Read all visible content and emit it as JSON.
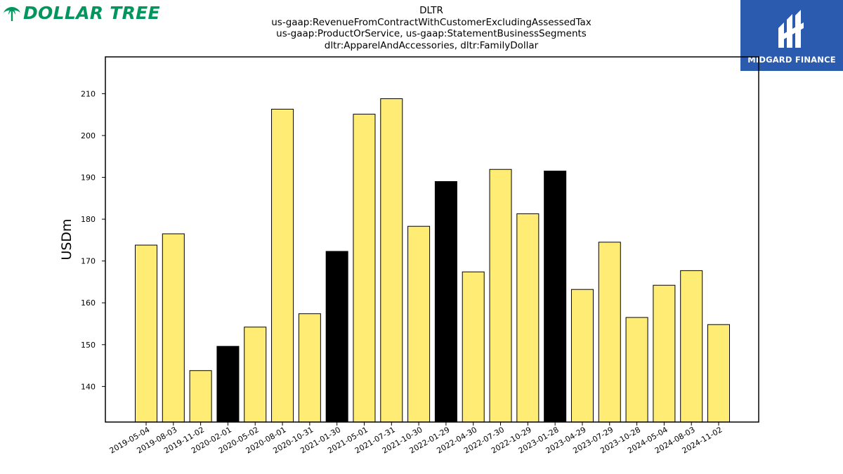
{
  "brand": {
    "name": "DOLLAR TREE",
    "color": "#00965E"
  },
  "partner": {
    "name": "MIDGARD FINANCE",
    "background": "#2B5BAE"
  },
  "chart_data": {
    "type": "bar",
    "title_lines": [
      "DLTR",
      "us-gaap:RevenueFromContractWithCustomerExcludingAssessedTax",
      "us-gaap:ProductOrService, us-gaap:StatementBusinessSegments",
      "dltr:ApparelAndAccessories, dltr:FamilyDollar"
    ],
    "xlabel": "",
    "ylabel": "USDm",
    "ylim": [
      131.5,
      218.8
    ],
    "yticks": [
      140,
      150,
      160,
      170,
      180,
      190,
      200,
      210
    ],
    "grid": false,
    "categories": [
      "2019-05-04",
      "2019-08-03",
      "2019-11-02",
      "2020-02-01",
      "2020-05-02",
      "2020-08-01",
      "2020-10-31",
      "2021-01-30",
      "2021-05-01",
      "2021-07-31",
      "2021-10-30",
      "2022-01-29",
      "2022-04-30",
      "2022-07-30",
      "2022-10-29",
      "2023-01-28",
      "2023-04-29",
      "2023-07-29",
      "2023-10-28",
      "2024-05-04",
      "2024-08-03",
      "2024-11-02"
    ],
    "values": [
      173.8,
      176.5,
      143.8,
      149.6,
      154.2,
      206.3,
      157.4,
      172.3,
      205.1,
      208.8,
      178.3,
      189.0,
      167.4,
      191.9,
      181.3,
      191.5,
      163.2,
      174.5,
      156.5,
      164.2,
      167.7,
      154.8
    ],
    "colors": {
      "default": "#FEEC74",
      "highlight": "#000000",
      "edge": "#000000"
    },
    "highlighted": [
      "2020-02-01",
      "2021-01-30",
      "2022-01-29",
      "2023-01-28"
    ]
  }
}
